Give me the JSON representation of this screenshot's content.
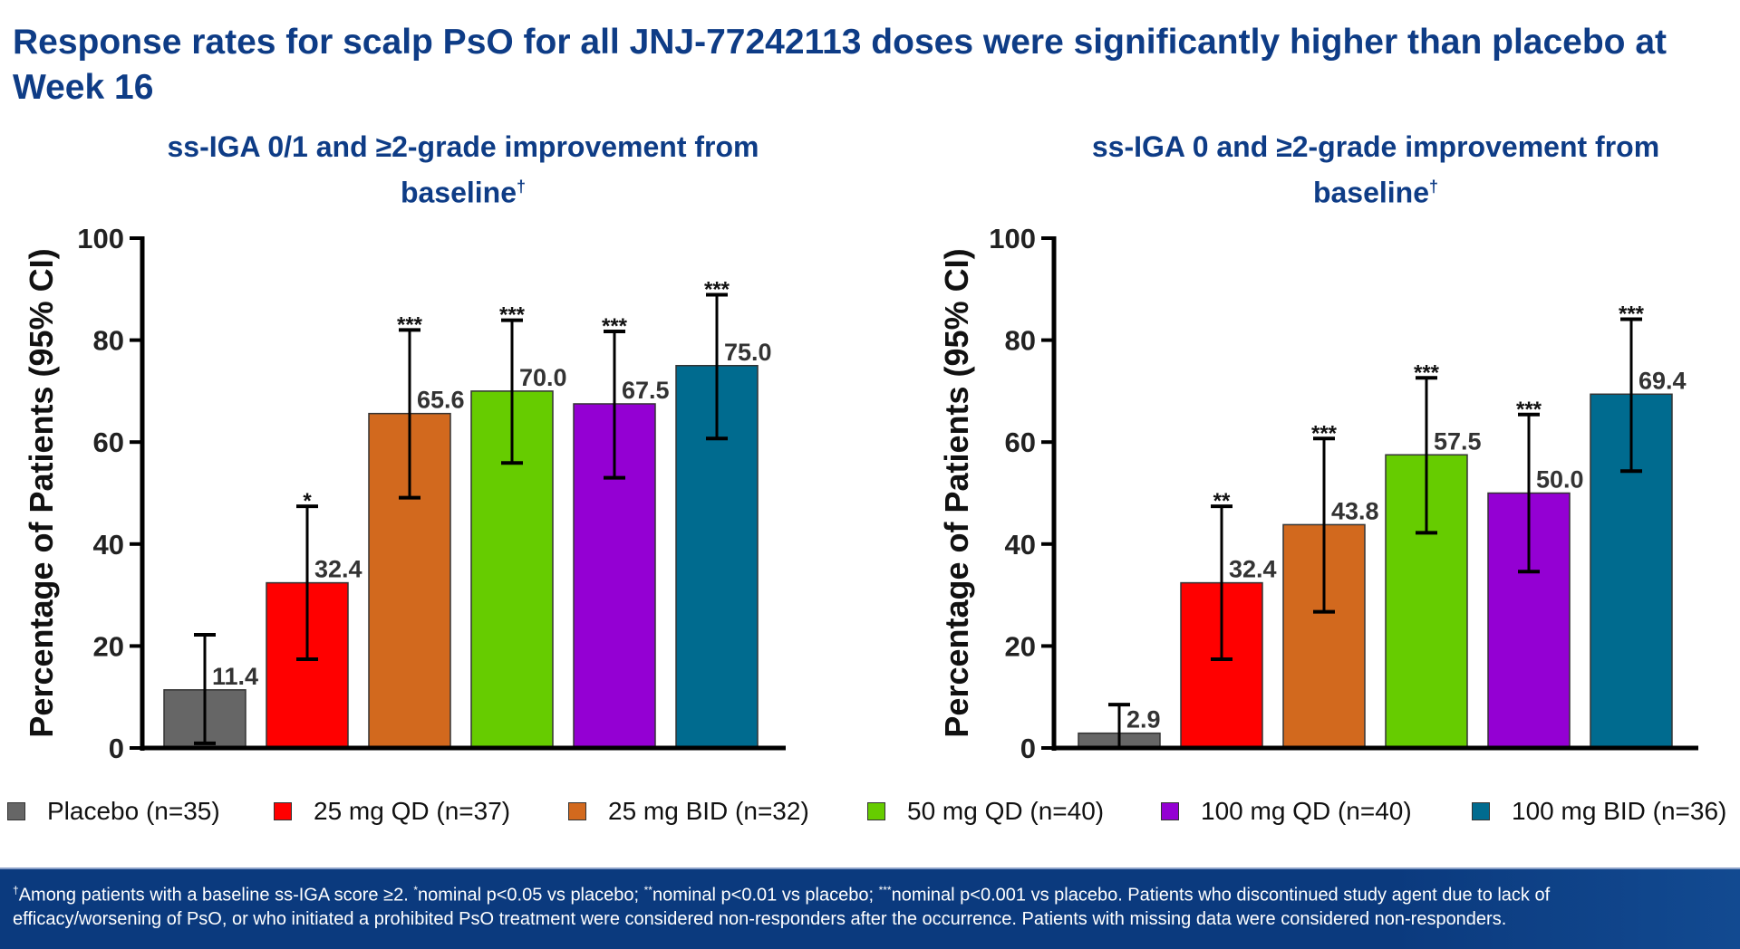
{
  "title": "Response rates for scalp PsO for all JNJ-77242113 doses were significantly higher than placebo at Week 16",
  "legend": [
    {
      "label": "Placebo (n=35)",
      "color": "#666666"
    },
    {
      "label": "25 mg QD (n=37)",
      "color": "#ff0000"
    },
    {
      "label": "25 mg BID (n=32)",
      "color": "#d2691e"
    },
    {
      "label": "50 mg QD (n=40)",
      "color": "#66cc00"
    },
    {
      "label": "100 mg QD (n=40)",
      "color": "#9400d3"
    },
    {
      "label": "100 mg BID (n=36)",
      "color": "#006b8f"
    }
  ],
  "chart_data": [
    {
      "type": "bar",
      "title": "ss-IGA 0/1 and ≥2-grade improvement from baseline",
      "title_mark": "†",
      "ylabel": "Percentage of Patients (95% CI)",
      "ylim": [
        0,
        100
      ],
      "yticks": [
        "0",
        "20",
        "40",
        "60",
        "80",
        "100"
      ],
      "categories": [
        "Placebo (n=35)",
        "25 mg QD (n=37)",
        "25 mg BID (n=32)",
        "50 mg QD (n=40)",
        "100 mg QD (n=40)",
        "100 mg BID (n=36)"
      ],
      "values": [
        11.4,
        32.4,
        65.6,
        70.0,
        67.5,
        75.0
      ],
      "labels": [
        "11.4",
        "32.4",
        "65.6",
        "70.0",
        "67.5",
        "75.0"
      ],
      "ci_lower": [
        0.9,
        17.4,
        49.1,
        55.9,
        53.0,
        60.7
      ],
      "ci_upper": [
        22.2,
        47.4,
        82.0,
        83.9,
        81.7,
        88.9
      ],
      "significance": [
        "",
        "*",
        "***",
        "***",
        "***",
        "***"
      ]
    },
    {
      "type": "bar",
      "title": "ss-IGA 0 and ≥2-grade improvement from baseline",
      "title_mark": "†",
      "ylabel": "Percentage of Patients (95% CI)",
      "ylim": [
        0,
        100
      ],
      "yticks": [
        "0",
        "20",
        "40",
        "60",
        "80",
        "100"
      ],
      "categories": [
        "Placebo (n=35)",
        "25 mg QD (n=37)",
        "25 mg BID (n=32)",
        "50 mg QD (n=40)",
        "100 mg QD (n=40)",
        "100 mg BID (n=36)"
      ],
      "values": [
        2.9,
        32.4,
        43.8,
        57.5,
        50.0,
        69.4
      ],
      "labels": [
        "2.9",
        "32.4",
        "43.8",
        "57.5",
        "50.0",
        "69.4"
      ],
      "ci_lower": [
        0,
        17.4,
        26.7,
        42.2,
        34.6,
        54.3
      ],
      "ci_upper": [
        8.5,
        47.4,
        60.7,
        72.6,
        65.4,
        84.1
      ],
      "significance": [
        "",
        "**",
        "***",
        "***",
        "***",
        "***"
      ]
    }
  ],
  "footnote": {
    "dagger": "†",
    "p1_mark": "*",
    "p2_mark": "**",
    "p3_mark": "***",
    "part1": "Among patients with a baseline ss-IGA score ≥2. ",
    "part2": "nominal p<0.05 vs placebo; ",
    "part3": "nominal p<0.01 vs placebo; ",
    "part4": "nominal p<0.001 vs placebo. Patients who discontinued study agent due to lack of efficacy/worsening of PsO, or who initiated a prohibited PsO treatment were considered non-responders after the occurrence. Patients with missing data were considered non-responders."
  }
}
